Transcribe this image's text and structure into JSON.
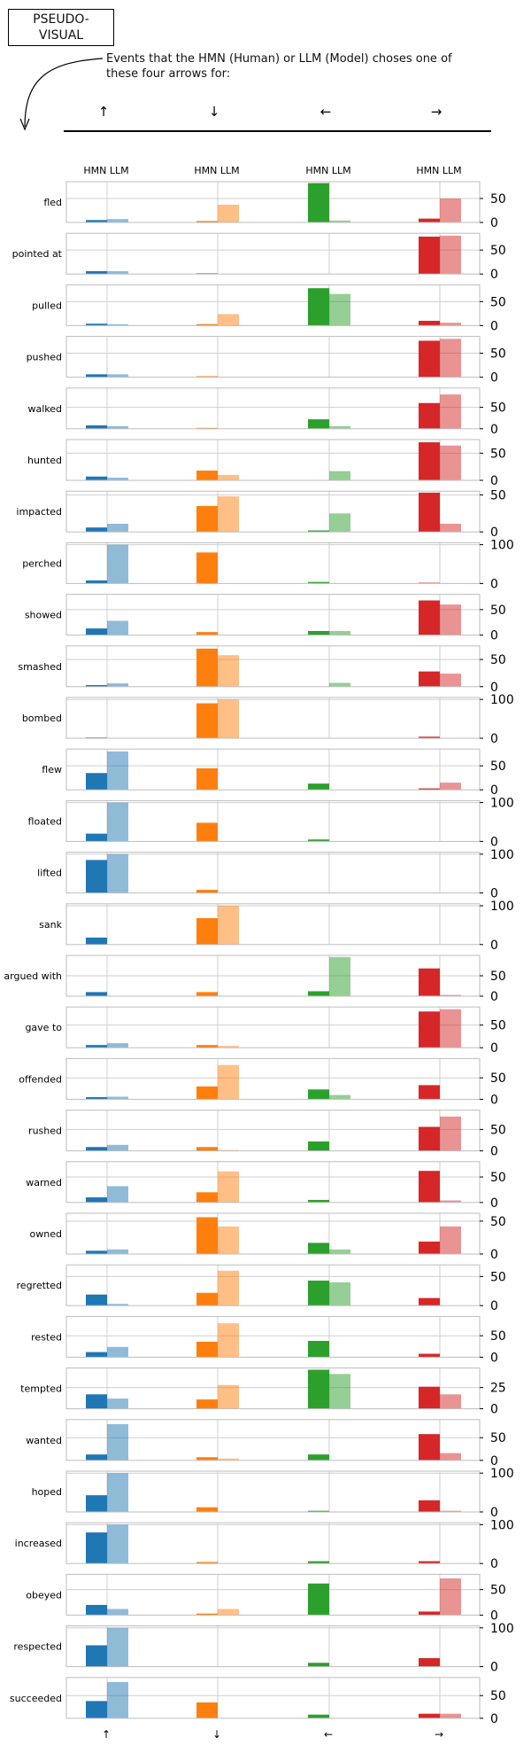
{
  "title": "PSEUDO-\nVISUAL",
  "caption": "Events that the HMN (Human) or LLM (Model) choses one of\nthese four arrows for:",
  "column_header": "HMN LLM",
  "colors": {
    "up": "#1f77b4",
    "down": "#ff7f0e",
    "left": "#2ca02c",
    "right": "#d62728"
  },
  "chart_data": {
    "type": "bar",
    "categories": [
      "↑",
      "↓",
      "←",
      "→"
    ],
    "series_names": [
      "HMN",
      "LLM"
    ],
    "grid": true,
    "rows": [
      {
        "label": "fled",
        "ticks": [
          0,
          50
        ],
        "ymax": 85,
        "values": [
          [
            5,
            7
          ],
          [
            3,
            37
          ],
          [
            82,
            4
          ],
          [
            8,
            50
          ]
        ]
      },
      {
        "label": "pointed at",
        "ticks": [
          0,
          50
        ],
        "ymax": 85,
        "values": [
          [
            6,
            6
          ],
          [
            2,
            0
          ],
          [
            0,
            0
          ],
          [
            78,
            80
          ]
        ]
      },
      {
        "label": "pulled",
        "ticks": [
          0,
          50
        ],
        "ymax": 85,
        "values": [
          [
            4,
            3
          ],
          [
            3,
            24
          ],
          [
            78,
            66
          ],
          [
            10,
            6
          ]
        ]
      },
      {
        "label": "pushed",
        "ticks": [
          0,
          50
        ],
        "ymax": 85,
        "values": [
          [
            6,
            6
          ],
          [
            2,
            0
          ],
          [
            0,
            0
          ],
          [
            76,
            80
          ]
        ]
      },
      {
        "label": "walked",
        "ticks": [
          0,
          50
        ],
        "ymax": 95,
        "values": [
          [
            8,
            6
          ],
          [
            2,
            0
          ],
          [
            22,
            6
          ],
          [
            60,
            80
          ]
        ]
      },
      {
        "label": "hunted",
        "ticks": [
          0,
          50
        ],
        "ymax": 75,
        "values": [
          [
            7,
            5
          ],
          [
            18,
            10
          ],
          [
            0,
            17
          ],
          [
            70,
            64
          ]
        ]
      },
      {
        "label": "impacted",
        "ticks": [
          0,
          50
        ],
        "ymax": 55,
        "values": [
          [
            6,
            11
          ],
          [
            35,
            48
          ],
          [
            2,
            25
          ],
          [
            53,
            11
          ]
        ]
      },
      {
        "label": "perched",
        "ticks": [
          0,
          100
        ],
        "ymax": 105,
        "values": [
          [
            8,
            100
          ],
          [
            80,
            0
          ],
          [
            4,
            0
          ],
          [
            2,
            0
          ]
        ]
      },
      {
        "label": "showed",
        "ticks": [
          0,
          50
        ],
        "ymax": 80,
        "values": [
          [
            13,
            28
          ],
          [
            6,
            0
          ],
          [
            8,
            8
          ],
          [
            68,
            60
          ]
        ]
      },
      {
        "label": "smashed",
        "ticks": [
          0,
          50
        ],
        "ymax": 75,
        "values": [
          [
            3,
            6
          ],
          [
            70,
            58
          ],
          [
            0,
            7
          ],
          [
            28,
            24
          ]
        ]
      },
      {
        "label": "bombed",
        "ticks": [
          0,
          100
        ],
        "ymax": 105,
        "values": [
          [
            2,
            0
          ],
          [
            90,
            100
          ],
          [
            0,
            0
          ],
          [
            4,
            0
          ]
        ]
      },
      {
        "label": "flew",
        "ticks": [
          0,
          50
        ],
        "ymax": 85,
        "values": [
          [
            35,
            80
          ],
          [
            45,
            0
          ],
          [
            13,
            0
          ],
          [
            3,
            15
          ]
        ]
      },
      {
        "label": "floated",
        "ticks": [
          0,
          100
        ],
        "ymax": 105,
        "values": [
          [
            20,
            100
          ],
          [
            48,
            0
          ],
          [
            5,
            0
          ],
          [
            0,
            0
          ]
        ]
      },
      {
        "label": "lifted",
        "ticks": [
          0,
          100
        ],
        "ymax": 105,
        "values": [
          [
            85,
            100
          ],
          [
            8,
            0
          ],
          [
            0,
            0
          ],
          [
            0,
            0
          ]
        ]
      },
      {
        "label": "sank",
        "ticks": [
          0,
          100
        ],
        "ymax": 105,
        "values": [
          [
            18,
            0
          ],
          [
            68,
            100
          ],
          [
            0,
            0
          ],
          [
            0,
            0
          ]
        ]
      },
      {
        "label": "argued with",
        "ticks": [
          0,
          50
        ],
        "ymax": 100,
        "values": [
          [
            10,
            0
          ],
          [
            10,
            0
          ],
          [
            12,
            96
          ],
          [
            68,
            3
          ]
        ]
      },
      {
        "label": "gave to",
        "ticks": [
          0,
          50
        ],
        "ymax": 90,
        "values": [
          [
            6,
            10
          ],
          [
            6,
            4
          ],
          [
            0,
            0
          ],
          [
            80,
            85
          ]
        ]
      },
      {
        "label": "offended",
        "ticks": [
          0,
          50
        ],
        "ymax": 95,
        "values": [
          [
            5,
            6
          ],
          [
            30,
            80
          ],
          [
            23,
            10
          ],
          [
            33,
            0
          ]
        ]
      },
      {
        "label": "rushed",
        "ticks": [
          0,
          50
        ],
        "ymax": 95,
        "values": [
          [
            9,
            14
          ],
          [
            9,
            2
          ],
          [
            22,
            0
          ],
          [
            56,
            80
          ]
        ]
      },
      {
        "label": "warned",
        "ticks": [
          0,
          50
        ],
        "ymax": 80,
        "values": [
          [
            10,
            32
          ],
          [
            20,
            61
          ],
          [
            5,
            0
          ],
          [
            62,
            4
          ]
        ]
      },
      {
        "label": "owned",
        "ticks": [
          0,
          50
        ],
        "ymax": 62,
        "values": [
          [
            5,
            7
          ],
          [
            56,
            42
          ],
          [
            17,
            7
          ],
          [
            19,
            42
          ]
        ]
      },
      {
        "label": "regretted",
        "ticks": [
          0,
          50
        ],
        "ymax": 70,
        "values": [
          [
            19,
            3
          ],
          [
            22,
            60
          ],
          [
            43,
            40
          ],
          [
            13,
            0
          ]
        ]
      },
      {
        "label": "rested",
        "ticks": [
          0,
          50
        ],
        "ymax": 95,
        "values": [
          [
            12,
            24
          ],
          [
            36,
            79
          ],
          [
            38,
            0
          ],
          [
            8,
            0
          ]
        ]
      },
      {
        "label": "tempted",
        "ticks": [
          0,
          25
        ],
        "ymax": 48,
        "values": [
          [
            17,
            12
          ],
          [
            11,
            28
          ],
          [
            46,
            41
          ],
          [
            26,
            17
          ]
        ]
      },
      {
        "label": "wanted",
        "ticks": [
          0,
          50
        ],
        "ymax": 90,
        "values": [
          [
            13,
            80
          ],
          [
            7,
            4
          ],
          [
            13,
            0
          ],
          [
            58,
            16
          ]
        ]
      },
      {
        "label": "hoped",
        "ticks": [
          0,
          100
        ],
        "ymax": 105,
        "values": [
          [
            43,
            100
          ],
          [
            12,
            0
          ],
          [
            3,
            0
          ],
          [
            30,
            3
          ]
        ]
      },
      {
        "label": "increased",
        "ticks": [
          0,
          100
        ],
        "ymax": 105,
        "values": [
          [
            80,
            100
          ],
          [
            4,
            0
          ],
          [
            6,
            0
          ],
          [
            6,
            0
          ]
        ]
      },
      {
        "label": "obeyed",
        "ticks": [
          0,
          50
        ],
        "ymax": 80,
        "values": [
          [
            20,
            12
          ],
          [
            3,
            12
          ],
          [
            62,
            0
          ],
          [
            7,
            72
          ]
        ]
      },
      {
        "label": "respected",
        "ticks": [
          0,
          100
        ],
        "ymax": 105,
        "values": [
          [
            55,
            100
          ],
          [
            0,
            0
          ],
          [
            10,
            0
          ],
          [
            22,
            0
          ]
        ]
      },
      {
        "label": "succeeded",
        "ticks": [
          0,
          50
        ],
        "ymax": 90,
        "values": [
          [
            38,
            80
          ],
          [
            35,
            0
          ],
          [
            8,
            0
          ],
          [
            10,
            10
          ]
        ]
      }
    ]
  }
}
